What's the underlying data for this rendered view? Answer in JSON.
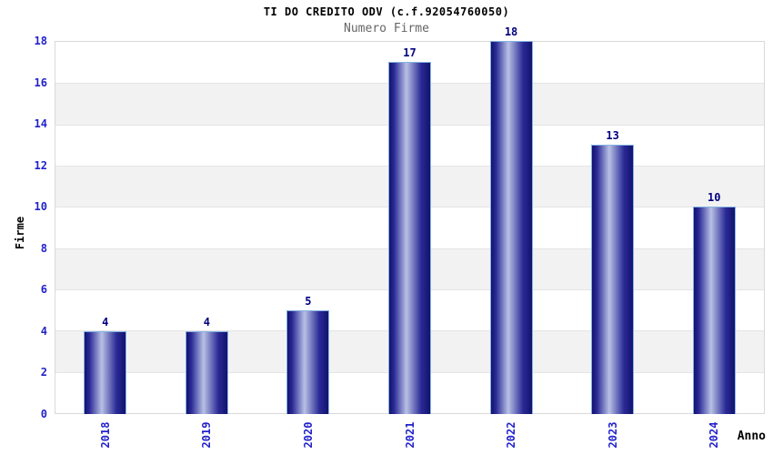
{
  "chart_data": {
    "type": "bar",
    "title": "TI DO CREDITO ODV (c.f.92054760050)",
    "subtitle": "Numero Firme",
    "xlabel": "Anno",
    "ylabel": "Firme",
    "categories": [
      "2018",
      "2019",
      "2020",
      "2021",
      "2022",
      "2023",
      "2024"
    ],
    "values": [
      4,
      4,
      5,
      17,
      18,
      13,
      10
    ],
    "ylim": [
      0,
      18
    ],
    "ytick_step": 2,
    "yticks": [
      0,
      2,
      4,
      6,
      8,
      10,
      12,
      14,
      16,
      18
    ],
    "legend": "none",
    "grid": "horizontal bands every 2 units, alternating white and gray",
    "colors": {
      "bar_edge": "#12126e",
      "bar_mid_edge": "#2a2a96",
      "bar_center": "#b8c1e5",
      "bar_border": "#85b2e3",
      "tick_label": "#2222cc",
      "value_label": "#000080",
      "band_white": "#ffffff",
      "band_gray": "#f2f2f2",
      "grid_line": "#e4e4e4",
      "frame": "#d9d9d9",
      "title_color": "#000000",
      "subtitle_color": "#666666"
    }
  }
}
